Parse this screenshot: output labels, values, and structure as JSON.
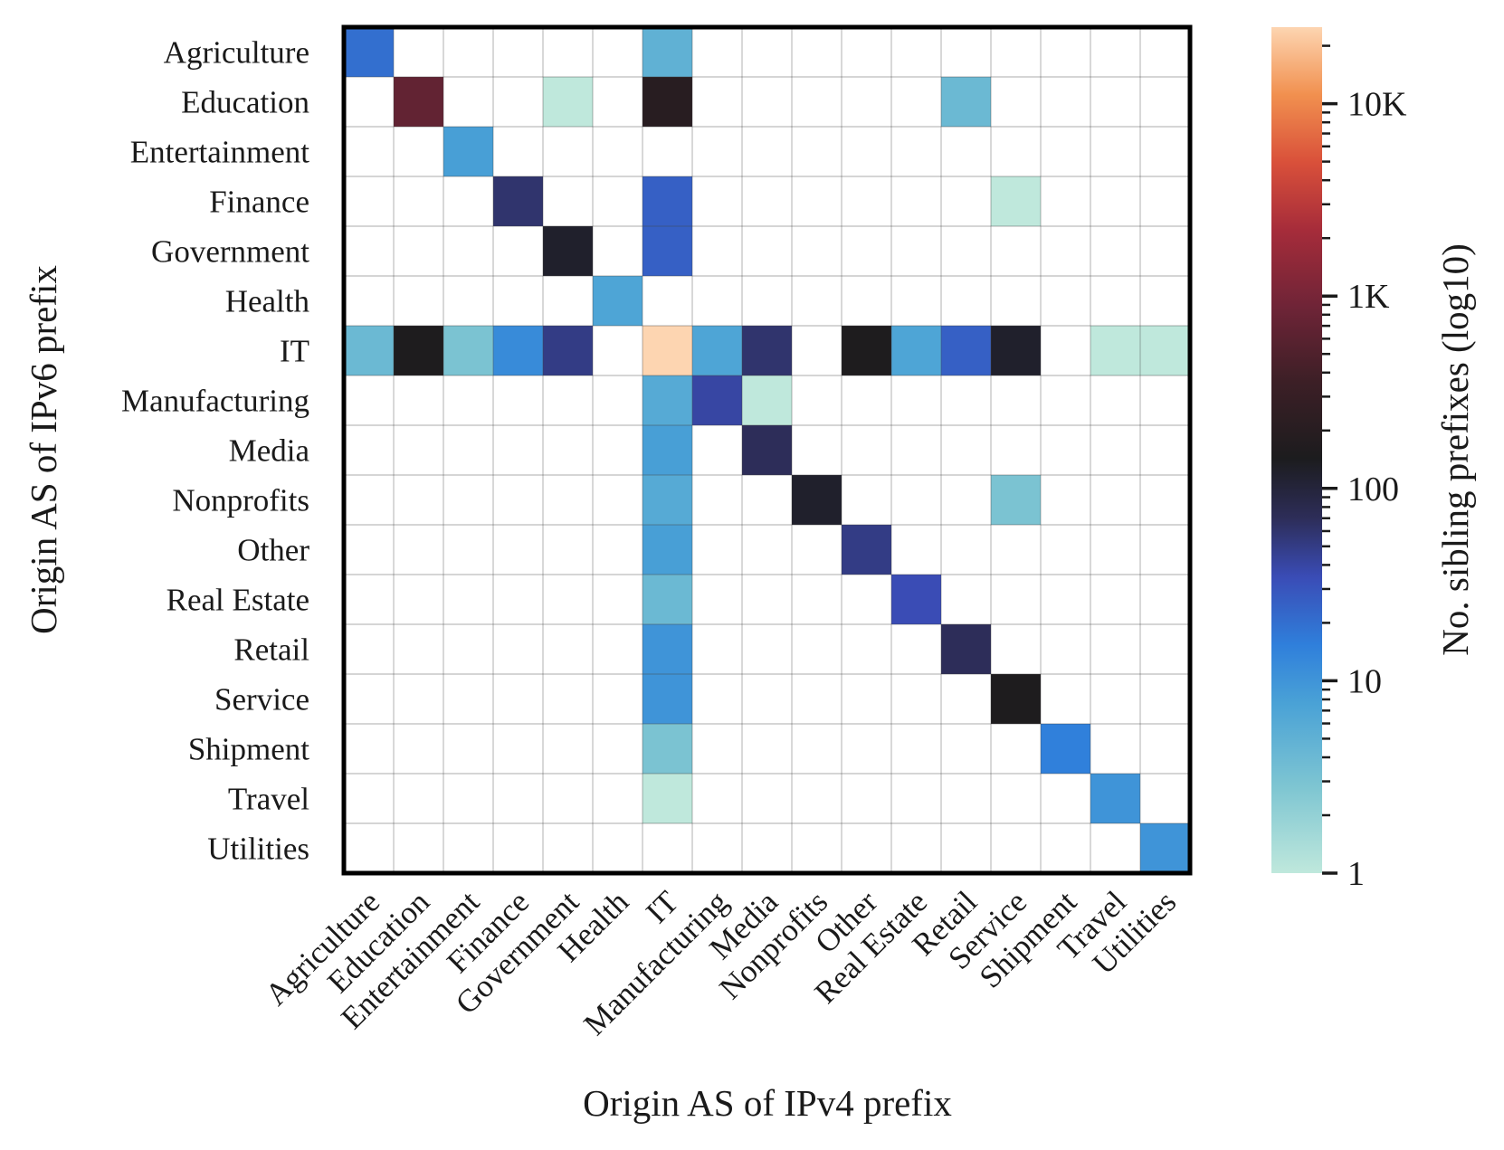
{
  "chart_data": {
    "type": "heatmap",
    "xlabel": "Origin AS of IPv4 prefix",
    "ylabel": "Origin AS of IPv6 prefix",
    "colorbar_label": "No. sibling prefixes (log10)",
    "color_scale": "log",
    "colormap": "icefire",
    "colorbar_range": [
      1,
      25000
    ],
    "colorbar_ticks": [
      {
        "value": 1,
        "label": "1"
      },
      {
        "value": 10,
        "label": "10"
      },
      {
        "value": 100,
        "label": "100"
      },
      {
        "value": 1000,
        "label": "1K"
      },
      {
        "value": 10000,
        "label": "10K"
      }
    ],
    "categories": [
      "Agriculture",
      "Education",
      "Entertainment",
      "Finance",
      "Government",
      "Health",
      "IT",
      "Manufacturing",
      "Media",
      "Nonprofits",
      "Other",
      "Real Estate",
      "Retail",
      "Service",
      "Shipment",
      "Travel",
      "Utilities"
    ],
    "cells": [
      {
        "row": "Agriculture",
        "col": "Agriculture",
        "value": 20
      },
      {
        "row": "Agriculture",
        "col": "IT",
        "value": 5
      },
      {
        "row": "Education",
        "col": "Education",
        "value": 700
      },
      {
        "row": "Education",
        "col": "Government",
        "value": 1
      },
      {
        "row": "Education",
        "col": "IT",
        "value": 200
      },
      {
        "row": "Education",
        "col": "Retail",
        "value": 4
      },
      {
        "row": "Entertainment",
        "col": "Entertainment",
        "value": 8
      },
      {
        "row": "Finance",
        "col": "Finance",
        "value": 60
      },
      {
        "row": "Finance",
        "col": "IT",
        "value": 25
      },
      {
        "row": "Finance",
        "col": "Service",
        "value": 1
      },
      {
        "row": "Government",
        "col": "Government",
        "value": 120
      },
      {
        "row": "Government",
        "col": "IT",
        "value": 25
      },
      {
        "row": "Health",
        "col": "Health",
        "value": 7
      },
      {
        "row": "IT",
        "col": "Agriculture",
        "value": 4
      },
      {
        "row": "IT",
        "col": "Education",
        "value": 150
      },
      {
        "row": "IT",
        "col": "Entertainment",
        "value": 3
      },
      {
        "row": "IT",
        "col": "Finance",
        "value": 12
      },
      {
        "row": "IT",
        "col": "Government",
        "value": 50
      },
      {
        "row": "IT",
        "col": "IT",
        "value": 25000
      },
      {
        "row": "IT",
        "col": "Manufacturing",
        "value": 7
      },
      {
        "row": "IT",
        "col": "Media",
        "value": 60
      },
      {
        "row": "IT",
        "col": "Other",
        "value": 150
      },
      {
        "row": "IT",
        "col": "Real Estate",
        "value": 7
      },
      {
        "row": "IT",
        "col": "Retail",
        "value": 25
      },
      {
        "row": "IT",
        "col": "Service",
        "value": 120
      },
      {
        "row": "IT",
        "col": "Travel",
        "value": 1
      },
      {
        "row": "IT",
        "col": "Utilities",
        "value": 1
      },
      {
        "row": "Manufacturing",
        "col": "IT",
        "value": 6
      },
      {
        "row": "Manufacturing",
        "col": "Manufacturing",
        "value": 40
      },
      {
        "row": "Manufacturing",
        "col": "Media",
        "value": 1
      },
      {
        "row": "Media",
        "col": "IT",
        "value": 8
      },
      {
        "row": "Media",
        "col": "Media",
        "value": 70
      },
      {
        "row": "Nonprofits",
        "col": "IT",
        "value": 6
      },
      {
        "row": "Nonprofits",
        "col": "Nonprofits",
        "value": 120
      },
      {
        "row": "Nonprofits",
        "col": "Service",
        "value": 3
      },
      {
        "row": "Other",
        "col": "IT",
        "value": 8
      },
      {
        "row": "Other",
        "col": "Other",
        "value": 50
      },
      {
        "row": "Real Estate",
        "col": "IT",
        "value": 4
      },
      {
        "row": "Real Estate",
        "col": "Real Estate",
        "value": 35
      },
      {
        "row": "Retail",
        "col": "IT",
        "value": 10
      },
      {
        "row": "Retail",
        "col": "Retail",
        "value": 70
      },
      {
        "row": "Service",
        "col": "IT",
        "value": 10
      },
      {
        "row": "Service",
        "col": "Service",
        "value": 150
      },
      {
        "row": "Shipment",
        "col": "IT",
        "value": 3
      },
      {
        "row": "Shipment",
        "col": "Shipment",
        "value": 15
      },
      {
        "row": "Travel",
        "col": "IT",
        "value": 1
      },
      {
        "row": "Travel",
        "col": "Travel",
        "value": 10
      },
      {
        "row": "Utilities",
        "col": "Utilities",
        "value": 10
      }
    ]
  }
}
